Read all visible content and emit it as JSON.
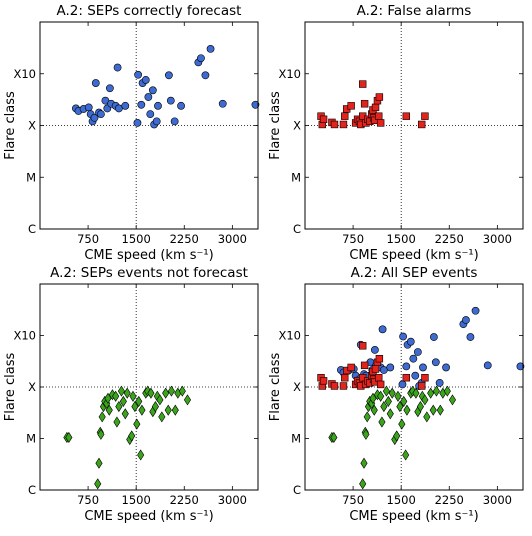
{
  "colors": {
    "correct": "#3d6bd1",
    "false_alarm": "#e3231c",
    "not_forecast": "#3aa51a",
    "marker_edge": "#000000",
    "ref_line": "#000000"
  },
  "chart_data": [
    {
      "type": "scatter",
      "title": "A.2: SEPs correctly forecast",
      "xlabel": "CME speed (km s⁻¹)",
      "ylabel": "Flare class",
      "xlim": [
        0,
        3400
      ],
      "ylim": [
        0,
        4
      ],
      "xticks": [
        750,
        1500,
        2250,
        3000
      ],
      "xtick_labels": [
        "750",
        "1500",
        "2250",
        "3000"
      ],
      "yticks": [
        0,
        1,
        2,
        3
      ],
      "ytick_labels": [
        "C",
        "M",
        "X",
        "X10"
      ],
      "reference_lines": {
        "x": 1500,
        "y": 2
      },
      "grid": false,
      "series": [
        {
          "marker": "circle",
          "color_key": "correct",
          "points": [
            [
              560,
              2.33
            ],
            [
              600,
              2.28
            ],
            [
              680,
              2.32
            ],
            [
              760,
              2.35
            ],
            [
              790,
              2.22
            ],
            [
              820,
              2.08
            ],
            [
              850,
              2.15
            ],
            [
              870,
              2.82
            ],
            [
              920,
              2.25
            ],
            [
              950,
              2.22
            ],
            [
              1020,
              2.48
            ],
            [
              1050,
              2.33
            ],
            [
              1090,
              2.72
            ],
            [
              1110,
              2.42
            ],
            [
              1180,
              2.38
            ],
            [
              1210,
              3.12
            ],
            [
              1230,
              2.33
            ],
            [
              1330,
              2.38
            ],
            [
              1520,
              2.05
            ],
            [
              1530,
              2.98
            ],
            [
              1580,
              2.4
            ],
            [
              1600,
              2.82
            ],
            [
              1650,
              2.88
            ],
            [
              1690,
              2.55
            ],
            [
              1720,
              2.22
            ],
            [
              1760,
              2.68
            ],
            [
              1780,
              2.02
            ],
            [
              1820,
              2.08
            ],
            [
              1840,
              2.38
            ],
            [
              2010,
              2.97
            ],
            [
              2040,
              2.48
            ],
            [
              2100,
              2.08
            ],
            [
              2200,
              2.38
            ],
            [
              2470,
              3.22
            ],
            [
              2510,
              3.3
            ],
            [
              2580,
              2.97
            ],
            [
              2660,
              3.48
            ],
            [
              2850,
              2.42
            ],
            [
              3360,
              2.4
            ]
          ]
        }
      ]
    },
    {
      "type": "scatter",
      "title": "A.2: False alarms",
      "xlabel": "CME speed (km s⁻¹)",
      "ylabel": "Flare class",
      "xlim": [
        0,
        3400
      ],
      "ylim": [
        0,
        4
      ],
      "xticks": [
        750,
        1500,
        2250,
        3000
      ],
      "xtick_labels": [
        "750",
        "1500",
        "2250",
        "3000"
      ],
      "yticks": [
        0,
        1,
        2,
        3
      ],
      "ytick_labels": [
        "C",
        "M",
        "X",
        "X10"
      ],
      "reference_lines": {
        "x": 1500,
        "y": 2
      },
      "grid": false,
      "series": [
        {
          "marker": "square",
          "color_key": "false_alarm",
          "points": [
            [
              250,
              2.18
            ],
            [
              270,
              2.02
            ],
            [
              290,
              2.12
            ],
            [
              420,
              2.06
            ],
            [
              460,
              2.02
            ],
            [
              600,
              2.02
            ],
            [
              620,
              2.18
            ],
            [
              650,
              2.32
            ],
            [
              720,
              2.38
            ],
            [
              790,
              2.05
            ],
            [
              820,
              2.12
            ],
            [
              850,
              2.08
            ],
            [
              870,
              2.02
            ],
            [
              900,
              2.18
            ],
            [
              930,
              2.42
            ],
            [
              950,
              2.05
            ],
            [
              980,
              2.12
            ],
            [
              1010,
              2.08
            ],
            [
              1040,
              2.22
            ],
            [
              1060,
              2.3
            ],
            [
              1070,
              2.15
            ],
            [
              1090,
              2.1
            ],
            [
              1100,
              2.35
            ],
            [
              1130,
              2.48
            ],
            [
              1150,
              2.18
            ],
            [
              1160,
              2.55
            ],
            [
              1180,
              2.05
            ],
            [
              1580,
              2.18
            ],
            [
              1820,
              2.02
            ],
            [
              1870,
              2.18
            ],
            [
              900,
              2.8
            ]
          ]
        }
      ]
    },
    {
      "type": "scatter",
      "title": "A.2: SEPs events not forecast",
      "xlabel": "CME speed (km s⁻¹)",
      "ylabel": "Flare class",
      "xlim": [
        0,
        3400
      ],
      "ylim": [
        0,
        4
      ],
      "xticks": [
        750,
        1500,
        2250,
        3000
      ],
      "xtick_labels": [
        "750",
        "1500",
        "2250",
        "3000"
      ],
      "yticks": [
        0,
        1,
        2,
        3
      ],
      "ytick_labels": [
        "C",
        "M",
        "X",
        "X10"
      ],
      "reference_lines": {
        "x": 1500,
        "y": 2
      },
      "grid": false,
      "series": [
        {
          "marker": "diamond",
          "color_key": "not_forecast",
          "points": [
            [
              420,
              1.02
            ],
            [
              450,
              1.02
            ],
            [
              900,
              0.12
            ],
            [
              920,
              0.52
            ],
            [
              940,
              1.12
            ],
            [
              950,
              1.08
            ],
            [
              970,
              1.42
            ],
            [
              990,
              1.62
            ],
            [
              1010,
              1.72
            ],
            [
              1040,
              1.68
            ],
            [
              1060,
              1.78
            ],
            [
              1080,
              1.55
            ],
            [
              1130,
              1.85
            ],
            [
              1180,
              1.82
            ],
            [
              1200,
              1.32
            ],
            [
              1230,
              1.62
            ],
            [
              1270,
              1.92
            ],
            [
              1300,
              1.72
            ],
            [
              1330,
              1.48
            ],
            [
              1360,
              1.88
            ],
            [
              1400,
              0.98
            ],
            [
              1430,
              1.05
            ],
            [
              1450,
              1.82
            ],
            [
              1480,
              1.62
            ],
            [
              1510,
              1.28
            ],
            [
              1540,
              1.72
            ],
            [
              1570,
              0.68
            ],
            [
              1590,
              1.55
            ],
            [
              1650,
              1.88
            ],
            [
              1680,
              1.92
            ],
            [
              1730,
              1.88
            ],
            [
              1760,
              1.52
            ],
            [
              1800,
              1.62
            ],
            [
              1830,
              1.82
            ],
            [
              1870,
              1.75
            ],
            [
              1900,
              1.42
            ],
            [
              1960,
              1.88
            ],
            [
              2000,
              1.55
            ],
            [
              2050,
              1.92
            ],
            [
              2110,
              1.55
            ],
            [
              2150,
              1.88
            ],
            [
              2220,
              1.92
            ],
            [
              2300,
              1.75
            ]
          ]
        }
      ]
    },
    {
      "type": "scatter",
      "title": "A.2: All SEP events",
      "xlabel": "CME speed (km s⁻¹)",
      "ylabel": "Flare class",
      "xlim": [
        0,
        3400
      ],
      "ylim": [
        0,
        4
      ],
      "xticks": [
        750,
        1500,
        2250,
        3000
      ],
      "xtick_labels": [
        "750",
        "1500",
        "2250",
        "3000"
      ],
      "yticks": [
        0,
        1,
        2,
        3
      ],
      "ytick_labels": [
        "C",
        "M",
        "X",
        "X10"
      ],
      "reference_lines": {
        "x": 1500,
        "y": 2
      },
      "grid": false,
      "series": [
        {
          "marker": "circle",
          "color_key": "correct",
          "points": [
            [
              560,
              2.33
            ],
            [
              600,
              2.28
            ],
            [
              680,
              2.32
            ],
            [
              760,
              2.35
            ],
            [
              790,
              2.22
            ],
            [
              820,
              2.08
            ],
            [
              850,
              2.15
            ],
            [
              870,
              2.82
            ],
            [
              920,
              2.25
            ],
            [
              950,
              2.22
            ],
            [
              1020,
              2.48
            ],
            [
              1050,
              2.33
            ],
            [
              1090,
              2.72
            ],
            [
              1110,
              2.42
            ],
            [
              1180,
              2.38
            ],
            [
              1210,
              3.12
            ],
            [
              1230,
              2.33
            ],
            [
              1330,
              2.38
            ],
            [
              1520,
              2.05
            ],
            [
              1530,
              2.98
            ],
            [
              1580,
              2.4
            ],
            [
              1600,
              2.82
            ],
            [
              1650,
              2.88
            ],
            [
              1690,
              2.55
            ],
            [
              1720,
              2.22
            ],
            [
              1760,
              2.68
            ],
            [
              1780,
              2.02
            ],
            [
              1820,
              2.08
            ],
            [
              1840,
              2.38
            ],
            [
              2010,
              2.97
            ],
            [
              2040,
              2.48
            ],
            [
              2100,
              2.08
            ],
            [
              2200,
              2.38
            ],
            [
              2470,
              3.22
            ],
            [
              2510,
              3.3
            ],
            [
              2580,
              2.97
            ],
            [
              2660,
              3.48
            ],
            [
              2850,
              2.42
            ],
            [
              3360,
              2.4
            ]
          ]
        },
        {
          "marker": "square",
          "color_key": "false_alarm",
          "points": [
            [
              250,
              2.18
            ],
            [
              270,
              2.02
            ],
            [
              290,
              2.12
            ],
            [
              420,
              2.06
            ],
            [
              460,
              2.02
            ],
            [
              600,
              2.02
            ],
            [
              620,
              2.18
            ],
            [
              650,
              2.32
            ],
            [
              720,
              2.38
            ],
            [
              790,
              2.05
            ],
            [
              820,
              2.12
            ],
            [
              850,
              2.08
            ],
            [
              870,
              2.02
            ],
            [
              900,
              2.18
            ],
            [
              930,
              2.42
            ],
            [
              950,
              2.05
            ],
            [
              980,
              2.12
            ],
            [
              1010,
              2.08
            ],
            [
              1040,
              2.22
            ],
            [
              1060,
              2.3
            ],
            [
              1070,
              2.15
            ],
            [
              1090,
              2.1
            ],
            [
              1100,
              2.35
            ],
            [
              1130,
              2.48
            ],
            [
              1150,
              2.18
            ],
            [
              1160,
              2.55
            ],
            [
              1180,
              2.05
            ],
            [
              1580,
              2.18
            ],
            [
              1820,
              2.02
            ],
            [
              1870,
              2.18
            ],
            [
              900,
              2.8
            ]
          ]
        },
        {
          "marker": "diamond",
          "color_key": "not_forecast",
          "points": [
            [
              420,
              1.02
            ],
            [
              450,
              1.02
            ],
            [
              900,
              0.12
            ],
            [
              920,
              0.52
            ],
            [
              940,
              1.12
            ],
            [
              950,
              1.08
            ],
            [
              970,
              1.42
            ],
            [
              990,
              1.62
            ],
            [
              1010,
              1.72
            ],
            [
              1040,
              1.68
            ],
            [
              1060,
              1.78
            ],
            [
              1080,
              1.55
            ],
            [
              1130,
              1.85
            ],
            [
              1180,
              1.82
            ],
            [
              1200,
              1.32
            ],
            [
              1230,
              1.62
            ],
            [
              1270,
              1.92
            ],
            [
              1300,
              1.72
            ],
            [
              1330,
              1.48
            ],
            [
              1360,
              1.88
            ],
            [
              1400,
              0.98
            ],
            [
              1430,
              1.05
            ],
            [
              1450,
              1.82
            ],
            [
              1480,
              1.62
            ],
            [
              1510,
              1.28
            ],
            [
              1540,
              1.72
            ],
            [
              1570,
              0.68
            ],
            [
              1590,
              1.55
            ],
            [
              1650,
              1.88
            ],
            [
              1680,
              1.92
            ],
            [
              1730,
              1.88
            ],
            [
              1760,
              1.52
            ],
            [
              1800,
              1.62
            ],
            [
              1830,
              1.82
            ],
            [
              1870,
              1.75
            ],
            [
              1900,
              1.42
            ],
            [
              1960,
              1.88
            ],
            [
              2000,
              1.55
            ],
            [
              2050,
              1.92
            ],
            [
              2110,
              1.55
            ],
            [
              2150,
              1.88
            ],
            [
              2220,
              1.92
            ],
            [
              2300,
              1.75
            ]
          ]
        }
      ]
    }
  ]
}
